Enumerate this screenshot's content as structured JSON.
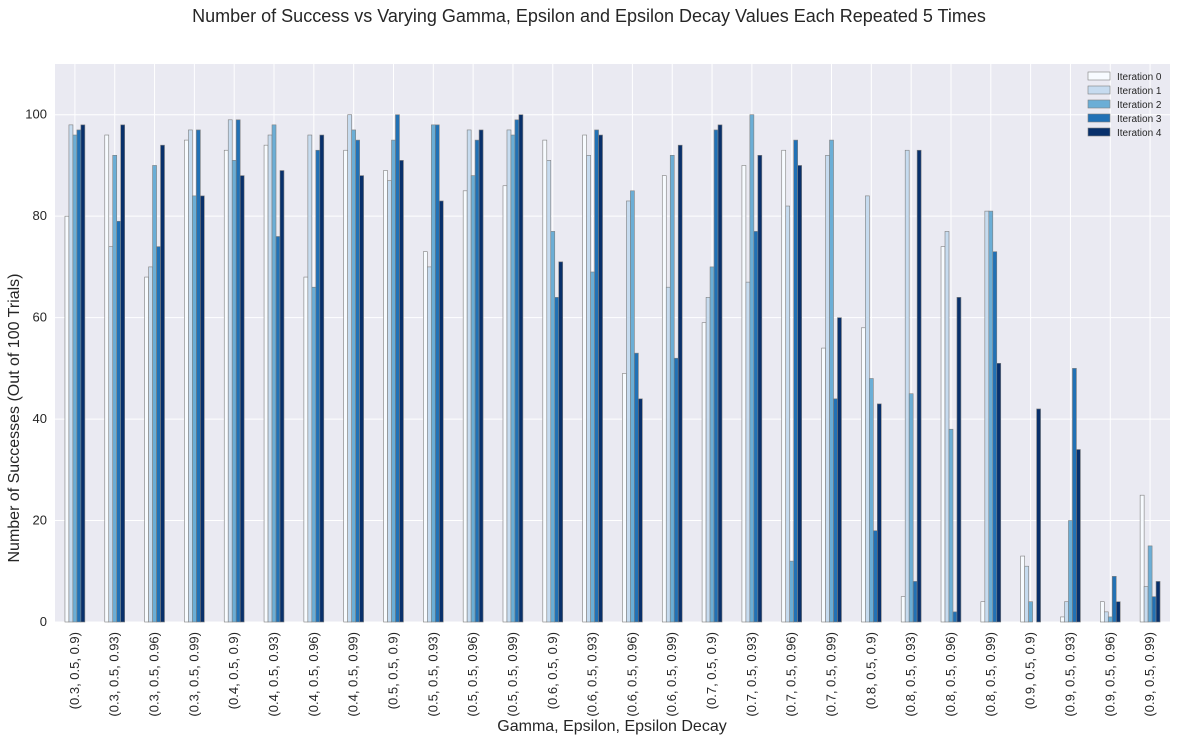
{
  "chart_data": {
    "type": "bar",
    "title": "Number of Success vs Varying Gamma, Epsilon and Epsilon Decay Values Each Repeated 5 Times",
    "xlabel": "Gamma, Epsilon, Epsilon Decay",
    "ylabel": "Number of Successes (Out of 100 Trials)",
    "ylim": [
      0,
      110
    ],
    "yticks": [
      0,
      20,
      40,
      60,
      80,
      100
    ],
    "grid": true,
    "legend_position": "top-right",
    "categories": [
      "(0.3, 0.5, 0.9)",
      "(0.3, 0.5, 0.93)",
      "(0.3, 0.5, 0.96)",
      "(0.3, 0.5, 0.99)",
      "(0.4, 0.5, 0.9)",
      "(0.4, 0.5, 0.93)",
      "(0.4, 0.5, 0.96)",
      "(0.4, 0.5, 0.99)",
      "(0.5, 0.5, 0.9)",
      "(0.5, 0.5, 0.93)",
      "(0.5, 0.5, 0.96)",
      "(0.5, 0.5, 0.99)",
      "(0.6, 0.5, 0.9)",
      "(0.6, 0.5, 0.93)",
      "(0.6, 0.5, 0.96)",
      "(0.6, 0.5, 0.99)",
      "(0.7, 0.5, 0.9)",
      "(0.7, 0.5, 0.93)",
      "(0.7, 0.5, 0.96)",
      "(0.7, 0.5, 0.99)",
      "(0.8, 0.5, 0.9)",
      "(0.8, 0.5, 0.93)",
      "(0.8, 0.5, 0.96)",
      "(0.8, 0.5, 0.99)",
      "(0.9, 0.5, 0.9)",
      "(0.9, 0.5, 0.93)",
      "(0.9, 0.5, 0.96)",
      "(0.9, 0.5, 0.99)"
    ],
    "series": [
      {
        "name": "Iteration 0",
        "color": "#f7fbff",
        "values": [
          80,
          96,
          68,
          95,
          93,
          94,
          68,
          93,
          89,
          73,
          85,
          86,
          95,
          96,
          49,
          88,
          59,
          90,
          93,
          54,
          58,
          5,
          74,
          4,
          13,
          1,
          4,
          25
        ]
      },
      {
        "name": "Iteration 1",
        "color": "#c6dbef",
        "values": [
          98,
          74,
          70,
          97,
          99,
          96,
          96,
          100,
          87,
          70,
          97,
          97,
          91,
          92,
          83,
          66,
          64,
          67,
          82,
          92,
          84,
          93,
          77,
          81,
          11,
          4,
          2,
          7
        ]
      },
      {
        "name": "Iteration 2",
        "color": "#6baed6",
        "values": [
          96,
          92,
          90,
          84,
          91,
          98,
          66,
          97,
          95,
          98,
          88,
          96,
          77,
          69,
          85,
          92,
          70,
          100,
          12,
          95,
          48,
          45,
          38,
          81,
          4,
          20,
          1,
          15
        ]
      },
      {
        "name": "Iteration 3",
        "color": "#2171b5",
        "values": [
          97,
          79,
          74,
          97,
          99,
          76,
          93,
          95,
          100,
          98,
          95,
          99,
          64,
          97,
          53,
          52,
          97,
          77,
          95,
          44,
          18,
          8,
          2,
          73,
          0,
          50,
          9,
          5
        ]
      },
      {
        "name": "Iteration 4",
        "color": "#08306b",
        "values": [
          98,
          98,
          94,
          84,
          88,
          89,
          96,
          88,
          91,
          83,
          97,
          100,
          71,
          96,
          44,
          94,
          98,
          92,
          90,
          60,
          43,
          93,
          64,
          51,
          42,
          34,
          4,
          8
        ]
      }
    ]
  }
}
